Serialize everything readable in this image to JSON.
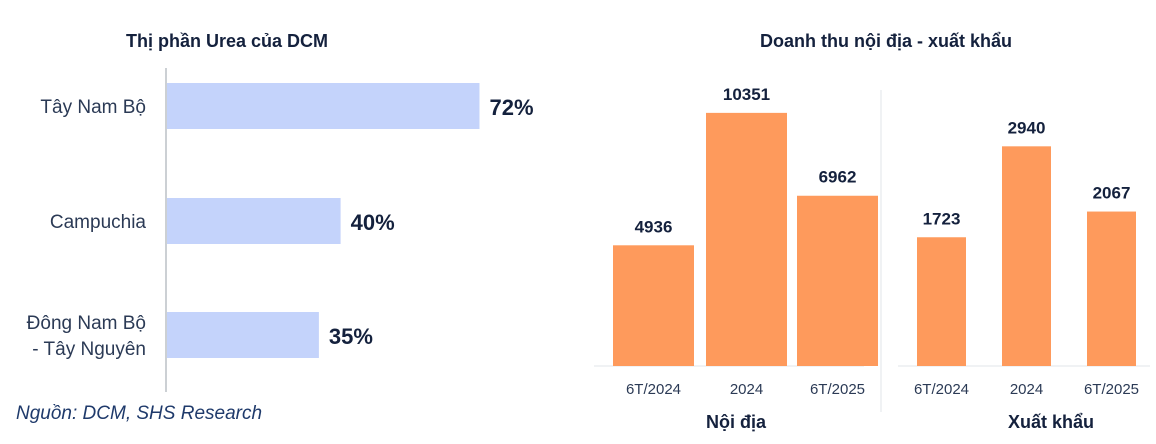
{
  "source_note": "Nguồn: DCM, SHS Research",
  "chart_data": [
    {
      "type": "bar",
      "orientation": "horizontal",
      "title": "Thị phần Urea của DCM",
      "categories": [
        [
          "Tây Nam Bộ"
        ],
        [
          "Campuchia"
        ],
        [
          "Đông Nam Bộ",
          "- Tây Nguyên"
        ]
      ],
      "values": [
        72,
        40,
        35
      ],
      "value_labels": [
        "72%",
        "40%",
        "35%"
      ],
      "unit": "%",
      "xlim": [
        0,
        100
      ],
      "grid": false,
      "bar_color": "#c4d3fb"
    },
    {
      "type": "bar",
      "title": "Doanh thu nội địa - xuất khẩu",
      "bar_color": "#fe9a5c",
      "grid": false,
      "panels": [
        {
          "label": "Nội địa",
          "categories": [
            "6T/2024",
            "2024",
            "6T/2025"
          ],
          "values": [
            4936,
            10351,
            6962
          ],
          "ylim": [
            0,
            11000
          ]
        },
        {
          "label": "Xuất khẩu",
          "categories": [
            "6T/2024",
            "2024",
            "6T/2025"
          ],
          "values": [
            1723,
            2940,
            2067
          ],
          "ylim": [
            0,
            3600
          ]
        }
      ]
    }
  ]
}
